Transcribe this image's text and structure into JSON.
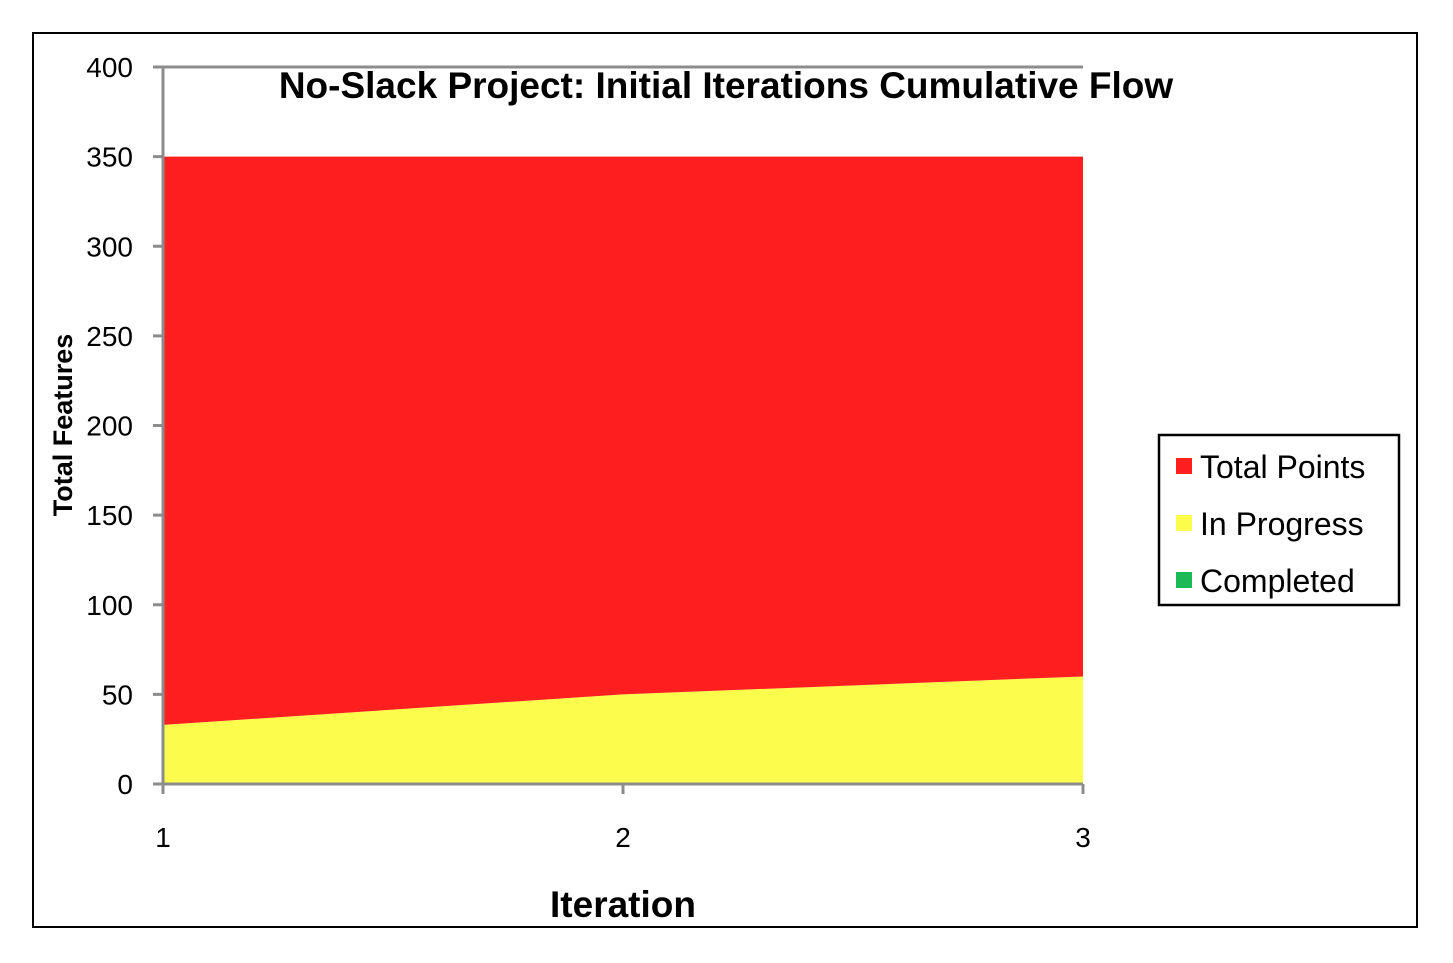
{
  "chart_data": {
    "type": "area",
    "title": "No-Slack Project: Initial Iterations Cumulative Flow",
    "xlabel": "Iteration",
    "ylabel": "Total Features",
    "categories": [
      "1",
      "2",
      "3"
    ],
    "ylim": [
      0,
      400
    ],
    "yticks": [
      0,
      50,
      100,
      150,
      200,
      250,
      300,
      350,
      400
    ],
    "stacked": true,
    "series": [
      {
        "name": "Completed",
        "color": "#1db954",
        "values": [
          0,
          0,
          0
        ]
      },
      {
        "name": "In Progress",
        "color": "#fcfc4c",
        "values": [
          33,
          50,
          60
        ]
      },
      {
        "name": "Total Points",
        "color": "#ff1f1f",
        "values": [
          317,
          300,
          290
        ]
      }
    ],
    "legend": {
      "position": "right",
      "entries": [
        "Total Points",
        "In Progress",
        "Completed"
      ]
    },
    "grid": false
  }
}
